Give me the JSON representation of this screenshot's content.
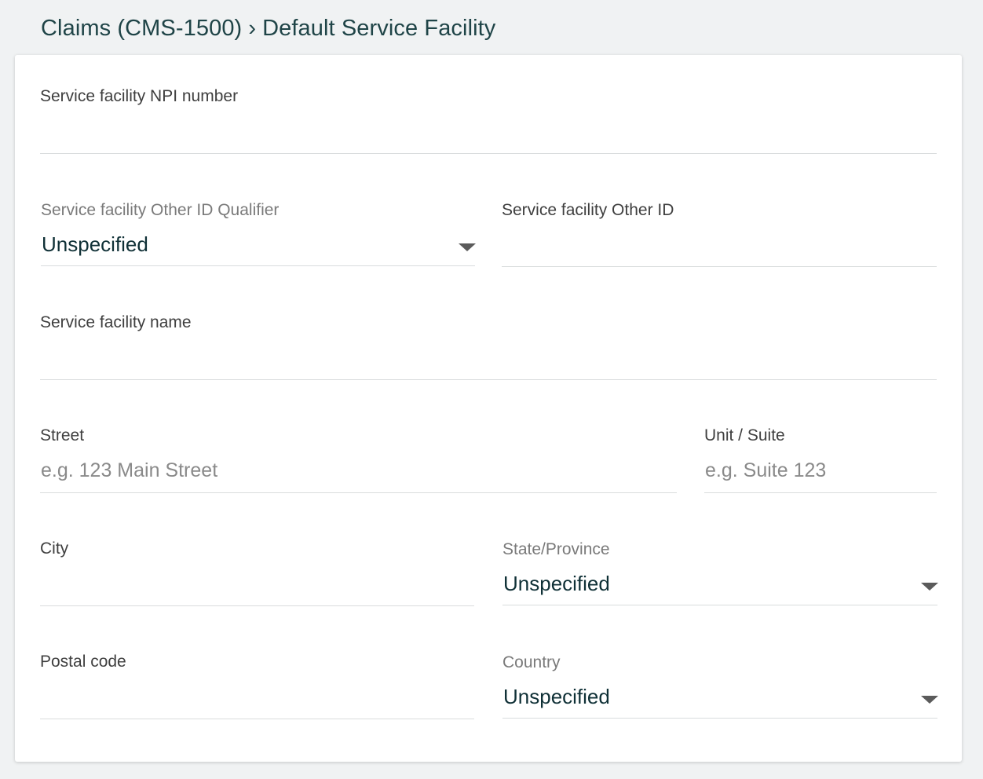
{
  "breadcrumb": {
    "parent": "Claims (CMS-1500)",
    "separator": "›",
    "current": "Default Service Facility"
  },
  "form": {
    "npi": {
      "label": "Service facility NPI number",
      "value": ""
    },
    "other_id_qualifier": {
      "label": "Service facility Other ID Qualifier",
      "value": "Unspecified"
    },
    "other_id": {
      "label": "Service facility Other ID",
      "value": ""
    },
    "name": {
      "label": "Service facility name",
      "value": ""
    },
    "street": {
      "label": "Street",
      "placeholder": "e.g. 123 Main Street",
      "value": ""
    },
    "unit": {
      "label": "Unit / Suite",
      "placeholder": "e.g. Suite 123",
      "value": ""
    },
    "city": {
      "label": "City",
      "value": ""
    },
    "state": {
      "label": "State/Province",
      "value": "Unspecified"
    },
    "postal": {
      "label": "Postal code",
      "value": ""
    },
    "country": {
      "label": "Country",
      "value": "Unspecified"
    }
  },
  "icons": {
    "dropdown": "chevron-down-icon"
  },
  "colors": {
    "page_background": "#f0f2f3",
    "card_background": "#ffffff",
    "title_text": "#1f4447",
    "value_text": "#0f3036",
    "label_text": "#3f3f3f",
    "muted_label_text": "#7a7a7a",
    "placeholder_text": "#8a8a8a",
    "divider": "#d9dcdd"
  }
}
